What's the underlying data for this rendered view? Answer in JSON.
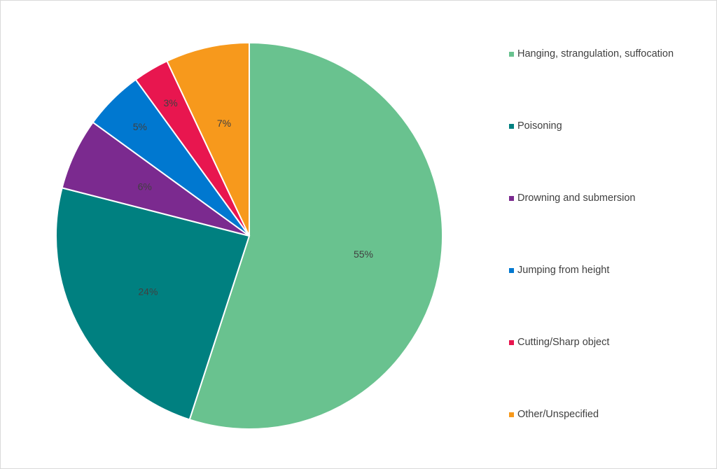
{
  "chart_data": {
    "type": "pie",
    "title": "",
    "categories": [
      "Hanging, strangulation, suffocation",
      "Poisoning",
      "Drowning and submersion",
      "Jumping from height",
      "Cutting/Sharp object",
      "Other/Unspecified"
    ],
    "values": [
      55,
      24,
      6,
      5,
      3,
      7
    ],
    "data_labels": [
      "55%",
      "24%",
      "6%",
      "5%",
      "3%",
      "7%"
    ],
    "colors": [
      "#69C28F",
      "#008080",
      "#7B2A8F",
      "#0078D0",
      "#E8164F",
      "#F7991C"
    ],
    "legend_position": "right"
  }
}
